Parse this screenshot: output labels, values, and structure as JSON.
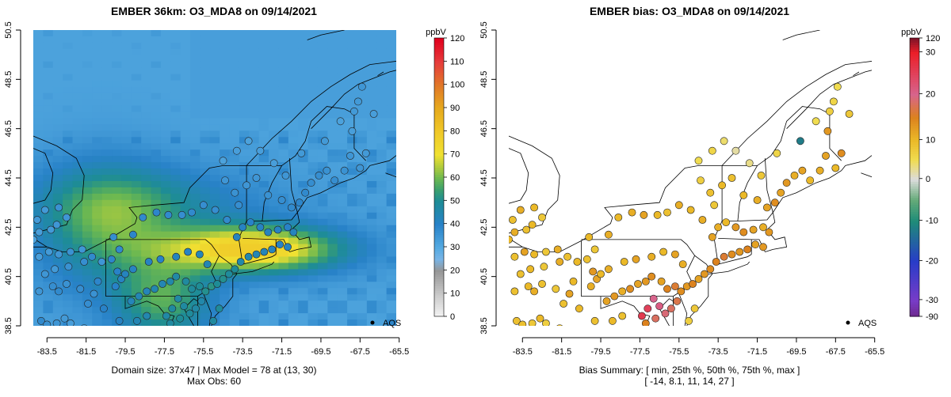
{
  "chart_data": [
    {
      "type": "heatmap",
      "title": "EMBER 36km: O3_MDA8 on 09/14/2021",
      "units": "ppbV",
      "x_ticks": [
        "-83.5",
        "-81.5",
        "-79.5",
        "-77.5",
        "-75.5",
        "-73.5",
        "-71.5",
        "-69.5",
        "-67.5",
        "-65.5"
      ],
      "y_ticks": [
        "38.5",
        "40.5",
        "42.5",
        "44.5",
        "46.5",
        "48.5",
        "50.5"
      ],
      "xlim": [
        -84.5,
        -65
      ],
      "ylim": [
        38.5,
        50.5
      ],
      "colorbar_ticks": [
        "0",
        "10",
        "20",
        "30",
        "40",
        "50",
        "60",
        "70",
        "80",
        "90",
        "100",
        "110",
        "120"
      ],
      "colorbar_range": [
        0,
        120
      ],
      "legend_label": "AQS",
      "domain_size": "37x47",
      "max_model": 78,
      "max_model_cell": "(13, 30)",
      "max_obs": 60,
      "caption_line1": "Domain size: 37x47 | Max Model = 78 at (13, 30)",
      "caption_line2": "Max Obs: 60"
    },
    {
      "type": "scatter",
      "title": "EMBER bias: O3_MDA8 on 09/14/2021",
      "units": "ppbV",
      "x_ticks": [
        "-83.5",
        "-81.5",
        "-79.5",
        "-77.5",
        "-75.5",
        "-73.5",
        "-71.5",
        "-69.5",
        "-67.5",
        "-65.5"
      ],
      "y_ticks": [
        "38.5",
        "40.5",
        "42.5",
        "44.5",
        "46.5",
        "48.5",
        "50.5"
      ],
      "xlim": [
        -84.5,
        -65
      ],
      "ylim": [
        38.5,
        50.5
      ],
      "colorbar_ticks": [
        "120",
        "30",
        "20",
        "10",
        "0",
        "-10",
        "-20",
        "-30",
        "-90"
      ],
      "legend_label": "AQS",
      "bias_summary": {
        "min": -14,
        "p25": 8.1,
        "p50": 11,
        "p75": 14,
        "max": 27
      },
      "caption_line1": "Bias Summary: [ min, 25th %, 50th %, 75th %, max ]",
      "caption_line2": "[ -14,  8.1,  11,  14,  27 ]"
    }
  ]
}
